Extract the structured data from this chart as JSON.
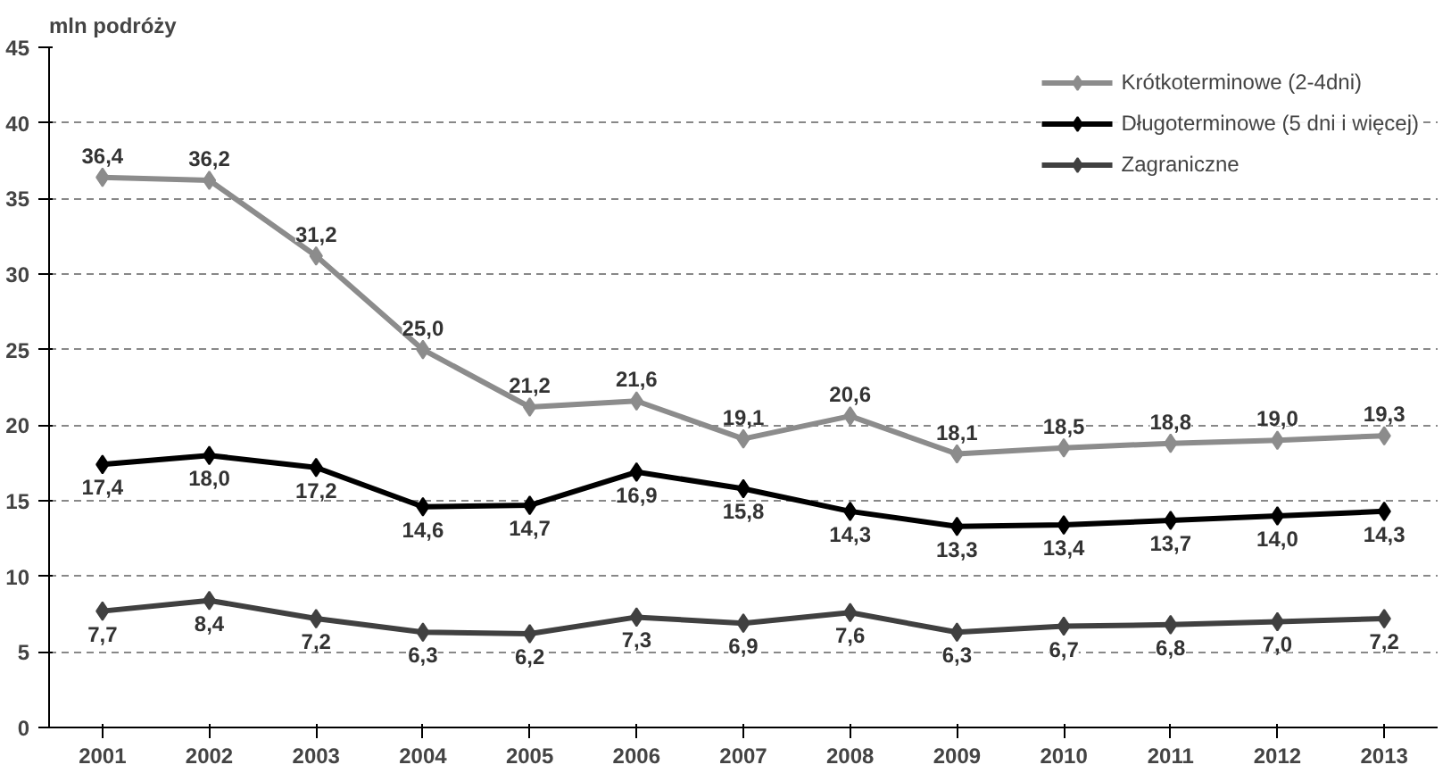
{
  "chart_data": {
    "type": "line",
    "ylabel": "mln podróży",
    "categories": [
      "2001",
      "2002",
      "2003",
      "2004",
      "2005",
      "2006",
      "2007",
      "2008",
      "2009",
      "2010",
      "2011",
      "2012",
      "2013"
    ],
    "series": [
      {
        "name": "Krótkoterminowe (2-4dni)",
        "color": "#8c8c8c",
        "values": [
          36.4,
          36.2,
          31.2,
          25.0,
          21.2,
          21.6,
          19.1,
          20.6,
          18.1,
          18.5,
          18.8,
          19.0,
          19.3
        ],
        "value_labels": [
          "36,4",
          "36,2",
          "31,2",
          "25,0",
          "21,2",
          "21,6",
          "19,1",
          "20,6",
          "18,1",
          "18,5",
          "18,8",
          "19,0",
          "19,3"
        ]
      },
      {
        "name": "Długoterminowe (5 dni i więcej)",
        "color": "#000000",
        "values": [
          17.4,
          18.0,
          17.2,
          14.6,
          14.7,
          16.9,
          15.8,
          14.3,
          13.3,
          13.4,
          13.7,
          14.0,
          14.3
        ],
        "value_labels": [
          "17,4",
          "18,0",
          "17,2",
          "14,6",
          "14,7",
          "16,9",
          "15,8",
          "14,3",
          "13,3",
          "13,4",
          "13,7",
          "14,0",
          "14,3"
        ]
      },
      {
        "name": "Zagraniczne",
        "color": "#404040",
        "values": [
          7.7,
          8.4,
          7.2,
          6.3,
          6.2,
          7.3,
          6.9,
          7.6,
          6.3,
          6.7,
          6.8,
          7.0,
          7.2
        ],
        "value_labels": [
          "7,7",
          "8,4",
          "7,2",
          "6,3",
          "6,2",
          "7,3",
          "6,9",
          "7,6",
          "6,3",
          "6,7",
          "6,8",
          "7,0",
          "7,2"
        ]
      }
    ],
    "ylim": [
      0,
      45
    ],
    "yticks": [
      0,
      5,
      10,
      15,
      20,
      25,
      30,
      35,
      40,
      45
    ],
    "grid": "y",
    "legend": "top right",
    "marker": "diamond",
    "line_style": "solid"
  }
}
